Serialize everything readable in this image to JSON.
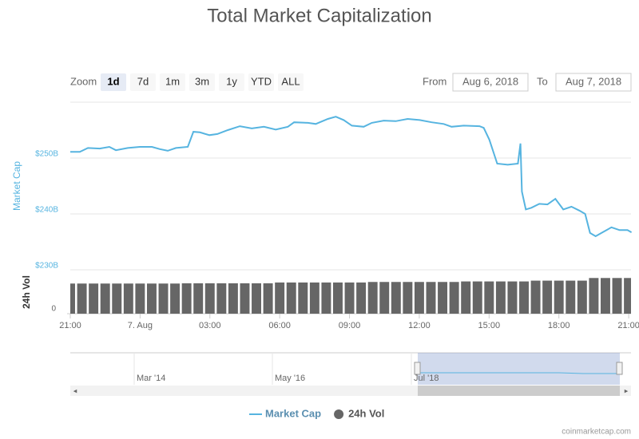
{
  "chart_data": {
    "type": "line",
    "title": "Total Market Capitalization",
    "y_label": "Market Cap",
    "y2_label": "24h Vol",
    "xlim": [
      21,
      45.1
    ],
    "xticks": [
      {
        "value": 21,
        "label": "21:00"
      },
      {
        "value": 24,
        "label": "7. Aug"
      },
      {
        "value": 27,
        "label": "03:00"
      },
      {
        "value": 30,
        "label": "06:00"
      },
      {
        "value": 33,
        "label": "09:00"
      },
      {
        "value": 36,
        "label": "12:00"
      },
      {
        "value": 39,
        "label": "15:00"
      },
      {
        "value": 42,
        "label": "18:00"
      },
      {
        "value": 45,
        "label": "21:00"
      }
    ],
    "ylim": [
      230,
      260
    ],
    "yticks": [
      {
        "value": 230,
        "label": "$230B"
      },
      {
        "value": 240,
        "label": "$240B"
      },
      {
        "value": 250,
        "label": "$250B"
      }
    ],
    "y2lim": [
      0,
      16
    ],
    "y2ticks": [
      0
    ],
    "grid": true,
    "series": [
      {
        "name": "Market Cap",
        "type": "line",
        "color": "#56b4e0",
        "x": [
          21.0,
          21.41,
          21.76,
          22.27,
          22.68,
          22.96,
          23.47,
          23.99,
          24.51,
          24.85,
          25.19,
          25.54,
          26.05,
          26.29,
          26.57,
          26.98,
          27.32,
          27.77,
          28.29,
          28.8,
          29.32,
          29.83,
          30.35,
          30.62,
          31.21,
          31.55,
          32.07,
          32.41,
          32.75,
          33.1,
          33.61,
          33.96,
          34.47,
          34.99,
          35.5,
          36.02,
          36.53,
          37.05,
          37.39,
          37.91,
          38.59,
          38.77,
          39.01,
          39.35,
          39.8,
          40.24,
          40.35,
          40.41,
          40.58,
          40.82,
          41.16,
          41.51,
          41.85,
          42.19,
          42.54,
          42.88,
          43.13,
          43.34,
          43.58,
          43.92,
          44.26,
          44.61,
          44.95,
          45.12
        ],
        "values": [
          251.1,
          251.1,
          251.8,
          251.7,
          252.0,
          251.4,
          251.8,
          252.0,
          252.0,
          251.6,
          251.3,
          251.8,
          252.0,
          254.7,
          254.6,
          254.1,
          254.3,
          255.0,
          255.7,
          255.3,
          255.6,
          255.1,
          255.6,
          256.4,
          256.3,
          256.1,
          257.0,
          257.4,
          256.8,
          255.8,
          255.6,
          256.3,
          256.7,
          256.6,
          257.0,
          256.8,
          256.4,
          256.1,
          255.6,
          255.8,
          255.7,
          255.4,
          253.3,
          249.0,
          248.8,
          249.0,
          252.6,
          244.0,
          240.8,
          241.1,
          241.8,
          241.7,
          242.7,
          240.8,
          241.3,
          240.6,
          240.0,
          236.6,
          236.0,
          236.8,
          237.6,
          237.1,
          237.1,
          236.7
        ]
      },
      {
        "name": "24h Vol",
        "type": "column",
        "axis": "y2",
        "color": "#666666",
        "x": [
          21,
          21.5,
          22,
          22.5,
          23,
          23.5,
          24,
          24.5,
          25,
          25.5,
          26,
          26.5,
          27,
          27.5,
          28,
          28.5,
          29,
          29.5,
          30,
          30.5,
          31,
          31.5,
          32,
          32.5,
          33,
          33.5,
          34,
          34.5,
          35,
          35.5,
          36,
          36.5,
          37,
          37.5,
          38,
          38.5,
          39,
          39.5,
          40,
          40.5,
          41,
          41.5,
          42,
          42.5,
          43,
          43.5,
          44,
          44.5,
          45
        ],
        "values": [
          11.4,
          11.4,
          11.4,
          11.4,
          11.4,
          11.4,
          11.4,
          11.4,
          11.4,
          11.4,
          11.5,
          11.5,
          11.5,
          11.5,
          11.5,
          11.5,
          11.5,
          11.5,
          11.8,
          11.8,
          11.8,
          11.8,
          11.8,
          11.8,
          11.8,
          11.8,
          12.0,
          12.0,
          12.0,
          12.0,
          12.0,
          12.0,
          12.0,
          12.0,
          12.2,
          12.2,
          12.2,
          12.2,
          12.2,
          12.2,
          12.5,
          12.5,
          12.5,
          12.5,
          12.5,
          13.5,
          13.5,
          13.5,
          13.5
        ]
      }
    ],
    "legend": "bottom"
  },
  "range_selector": {
    "label": "Zoom",
    "buttons": [
      "1d",
      "7d",
      "1m",
      "3m",
      "1y",
      "YTD",
      "ALL"
    ],
    "selected": 0,
    "from_label": "From",
    "from": "Aug 6, 2018",
    "to_label": "To",
    "to": "Aug 7, 2018"
  },
  "navigator": {
    "labels": [
      "Mar '14",
      "May '16",
      "Jul '18"
    ]
  },
  "credits": "coinmarketcap.com"
}
